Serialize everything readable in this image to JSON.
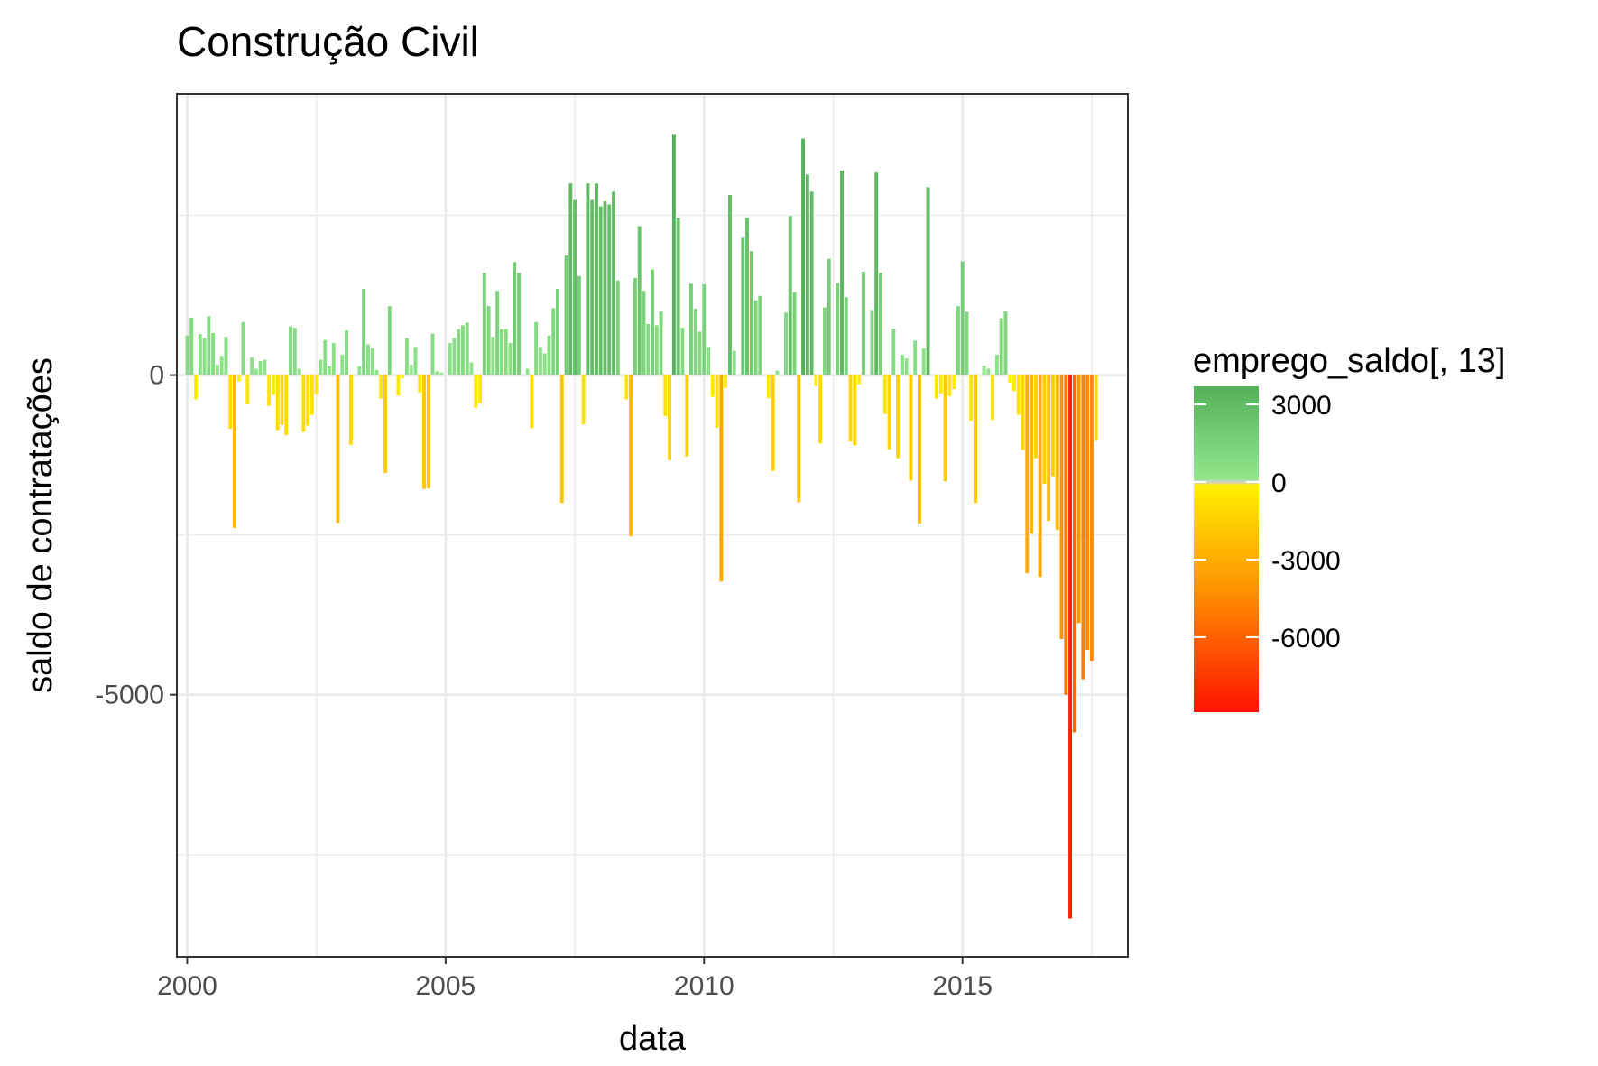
{
  "chart_data": {
    "type": "bar",
    "title": "Construção Civil",
    "xlabel": "data",
    "ylabel": "saldo de contratações",
    "x_ticks": [
      "2000",
      "2005",
      "2010",
      "2015"
    ],
    "y_ticks": [
      "0",
      "-5000"
    ],
    "xlim": [
      1999.8,
      2018.2
    ],
    "ylim": [
      -9100,
      4400
    ],
    "grid": true,
    "legend": {
      "title": "emprego_saldo[, 13]",
      "position": "right",
      "labels": [
        "3000",
        "0",
        "-3000",
        "-6000"
      ],
      "values": [
        3000,
        0,
        -3000,
        -6000
      ],
      "range": [
        -8900,
        3700
      ],
      "colors": {
        "high": "#55b05a",
        "mid_high": "#92e68c",
        "zero": "#d0d0d0",
        "mid_low": "#fff000",
        "low_mid": "#ff9500",
        "low": "#ff1300"
      }
    },
    "x_start": "2000-01",
    "values": [
      620,
      900,
      -380,
      640,
      580,
      920,
      660,
      160,
      300,
      600,
      -840,
      -2390,
      -100,
      830,
      -460,
      280,
      100,
      220,
      240,
      -480,
      -310,
      -860,
      -780,
      -940,
      760,
      740,
      100,
      -890,
      -790,
      -620,
      -300,
      240,
      550,
      140,
      500,
      -2310,
      320,
      700,
      -1090,
      0,
      140,
      1350,
      480,
      420,
      80,
      -370,
      -1530,
      1080,
      0,
      -320,
      -50,
      580,
      160,
      440,
      -270,
      -1780,
      -1770,
      650,
      60,
      40,
      0,
      500,
      580,
      720,
      780,
      820,
      200,
      -510,
      -440,
      1600,
      1080,
      600,
      1320,
      720,
      720,
      500,
      1770,
      1600,
      0,
      100,
      -830,
      830,
      440,
      340,
      620,
      1050,
      1350,
      -2000,
      1870,
      3000,
      2740,
      1550,
      -770,
      3000,
      2740,
      3000,
      2640,
      2720,
      2670,
      2870,
      1480,
      0,
      -380,
      -2520,
      1520,
      2330,
      1320,
      800,
      1650,
      780,
      1000,
      -640,
      -1330,
      3760,
      2460,
      740,
      -1270,
      1430,
      1040,
      680,
      1420,
      440,
      -340,
      -820,
      -3230,
      -200,
      2820,
      380,
      0,
      2150,
      2460,
      1940,
      1170,
      1240,
      0,
      -360,
      -1500,
      70,
      0,
      980,
      2490,
      1300,
      -1990,
      3700,
      3140,
      2870,
      -170,
      -1070,
      1060,
      1820,
      0,
      1440,
      3200,
      1220,
      -1040,
      -1100,
      -140,
      1620,
      0,
      1020,
      3170,
      1600,
      -610,
      -1160,
      730,
      -1300,
      320,
      260,
      -1650,
      540,
      -2320,
      420,
      2940,
      0,
      -370,
      -290,
      -1660,
      -330,
      -220,
      1080,
      1780,
      990,
      -710,
      -2000,
      0,
      150,
      100,
      -700,
      320,
      890,
      1000,
      -120,
      -250,
      -620,
      -1170,
      -3100,
      -2480,
      -1300,
      -3160,
      -1700,
      -2280,
      -1580,
      -2420,
      -4130,
      -5000,
      -8500,
      -5590,
      -3880,
      -4760,
      -4300,
      -4470,
      -1030
    ],
    "series": [
      {
        "name": "emprego_saldo[, 13]",
        "values": "values"
      }
    ]
  }
}
